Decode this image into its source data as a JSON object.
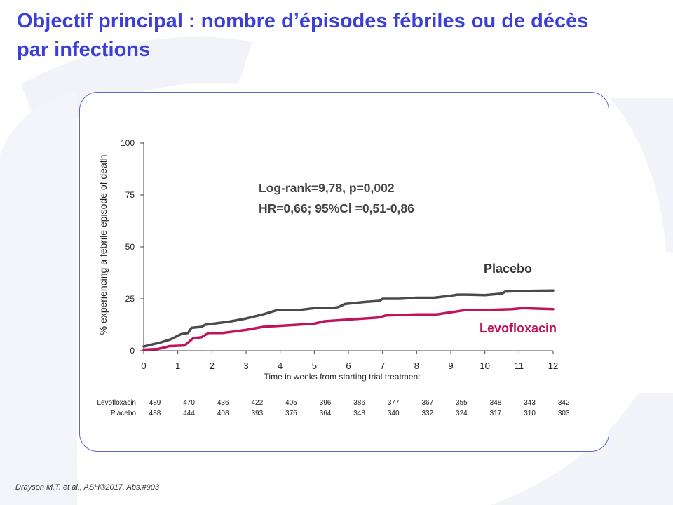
{
  "slide": {
    "title_line1": "Objectif principal : nombre d’épisodes fébriles ou de décès",
    "title_line2": "par infections",
    "citation": "Drayson M.T.  et al., ASH®2017, Abs.#903"
  },
  "colors": {
    "title": "#3b3fd8",
    "placebo": "#4a4a4a",
    "levofloxacin": "#c0145a",
    "frame": "#5a67c8"
  },
  "chart_data": {
    "type": "line",
    "xlabel": "Time in weeks from starting trial treatment",
    "ylabel": "% experiencing a febrile episode of death",
    "xlim": [
      0,
      12
    ],
    "ylim": [
      0,
      100
    ],
    "x_ticks": [
      "0",
      "1",
      "2",
      "3",
      "4",
      "5",
      "6",
      "7",
      "8",
      "9",
      "10",
      "11",
      "12"
    ],
    "y_ticks": [
      "0",
      "25",
      "50",
      "75",
      "100"
    ],
    "annotations": [
      "Log-rank=9,78, p=0,002",
      "HR=0,66; 95%Cl =0,51-0,86"
    ],
    "series": [
      {
        "name": "Placebo",
        "color": "#4a4a4a",
        "points": [
          [
            0,
            2
          ],
          [
            0.5,
            4
          ],
          [
            0.8,
            5.5
          ],
          [
            1.1,
            8
          ],
          [
            1.3,
            8.5
          ],
          [
            1.4,
            11
          ],
          [
            1.7,
            11.5
          ],
          [
            1.8,
            12.5
          ],
          [
            2.5,
            14
          ],
          [
            3,
            15.5
          ],
          [
            3.5,
            17.5
          ],
          [
            3.9,
            19.5
          ],
          [
            4.5,
            19.5
          ],
          [
            5,
            20.5
          ],
          [
            5.5,
            20.5
          ],
          [
            5.7,
            21
          ],
          [
            5.9,
            22.5
          ],
          [
            6.5,
            23.5
          ],
          [
            6.9,
            24
          ],
          [
            7,
            25
          ],
          [
            7.5,
            25
          ],
          [
            8,
            25.5
          ],
          [
            8.5,
            25.5
          ],
          [
            9,
            26.5
          ],
          [
            9.2,
            27
          ],
          [
            9.5,
            27
          ],
          [
            10,
            26.8
          ],
          [
            10.5,
            27.5
          ],
          [
            10.6,
            28.5
          ],
          [
            11,
            28.7
          ],
          [
            12,
            29
          ]
        ]
      },
      {
        "name": "Levofloxacin",
        "color": "#c0145a",
        "points": [
          [
            0,
            0.5
          ],
          [
            0.4,
            0.8
          ],
          [
            0.6,
            1.5
          ],
          [
            0.75,
            2.2
          ],
          [
            1.2,
            2.5
          ],
          [
            1.45,
            6
          ],
          [
            1.7,
            6.5
          ],
          [
            1.9,
            8.5
          ],
          [
            2.3,
            8.5
          ],
          [
            3,
            10
          ],
          [
            3.5,
            11.5
          ],
          [
            4,
            12
          ],
          [
            5,
            13
          ],
          [
            5.3,
            14.2
          ],
          [
            6,
            15
          ],
          [
            6.9,
            16
          ],
          [
            7.1,
            17
          ],
          [
            8,
            17.5
          ],
          [
            8.6,
            17.5
          ],
          [
            9,
            18.5
          ],
          [
            9.4,
            19.5
          ],
          [
            10,
            19.6
          ],
          [
            10.8,
            20
          ],
          [
            11.1,
            20.5
          ],
          [
            12,
            20
          ]
        ]
      }
    ],
    "risk_table": {
      "rows": [
        {
          "label": "Levofloxacin",
          "values": [
            "489",
            "470",
            "436",
            "422",
            "405",
            "396",
            "386",
            "377",
            "367",
            "355",
            "348",
            "343",
            "342"
          ]
        },
        {
          "label": "Placebo",
          "values": [
            "488",
            "444",
            "408",
            "393",
            "375",
            "364",
            "348",
            "340",
            "332",
            "324",
            "317",
            "310",
            "303"
          ]
        }
      ]
    }
  }
}
